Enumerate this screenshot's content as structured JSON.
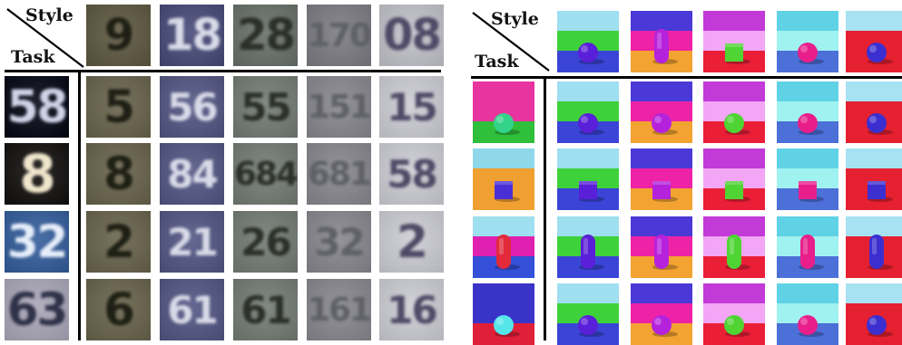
{
  "left_panel": {
    "style_label": "Style",
    "task_label": "Task",
    "style_digits": [
      "9",
      "18",
      "28",
      "170",
      "08"
    ],
    "style_bgs": [
      "#6f6a55",
      "#5b5e86",
      "#79807a",
      "#8a8a90",
      "#c8c8cf"
    ],
    "style_fgs": [
      "#1f2015",
      "#d9dbe9",
      "#2b3028",
      "#5f6068",
      "#4f4a66"
    ],
    "task_digits": [
      "58",
      "8",
      "32",
      "63"
    ],
    "task_bgs": [
      "#20222e",
      "#2d2a2a",
      "#4a6ea6",
      "#b3b0bf"
    ],
    "task_fgs": [
      "#cfd3e6",
      "#efe6cc",
      "#e7eefa",
      "#30324a"
    ],
    "grid_digits": [
      [
        "5",
        "56",
        "55",
        "151",
        "15"
      ],
      [
        "8",
        "84",
        "684",
        "681",
        "58"
      ],
      [
        "2",
        "21",
        "26",
        "32",
        "2"
      ],
      [
        "6",
        "61",
        "61",
        "161",
        "16"
      ]
    ]
  },
  "right_panel": {
    "style_label": "Style",
    "task_label": "Task",
    "style_scenes": [
      {
        "wall": "#9edff0",
        "floor": "#3a44d6",
        "band": "#3ed23a",
        "shape": "sphere",
        "color": "#5a1fd8"
      },
      {
        "wall": "#4a39d6",
        "floor": "#f2a332",
        "band": "#ee22a6",
        "shape": "capsule",
        "color": "#b522dc"
      },
      {
        "wall": "#c23ad8",
        "floor": "#ea1f37",
        "band": "#f2a6f5",
        "shape": "cube",
        "color": "#4fd434"
      },
      {
        "wall": "#5fd2e6",
        "floor": "#4c6fd8",
        "band": "#a0f2f0",
        "shape": "sphere",
        "color": "#e81f8a"
      },
      {
        "wall": "#a6e2f2",
        "floor": "#e52030",
        "band": "#e52030",
        "shape": "sphere",
        "color": "#3c2fd0"
      }
    ],
    "task_scenes": [
      {
        "wall": "#e8349e",
        "floor": "#2fbf3a",
        "band": "#e8349e",
        "shape": "sphere",
        "color": "#34d38a"
      },
      {
        "wall": "#8fd8ea",
        "floor": "#f0a030",
        "band": "#f0a030",
        "shape": "cube",
        "color": "#4a2fd6"
      },
      {
        "wall": "#9edff0",
        "floor": "#3450d8",
        "band": "#e020b0",
        "shape": "capsule",
        "color": "#e22a3a"
      },
      {
        "wall": "#3a33c8",
        "floor": "#e01f3a",
        "band": "#3a33c8",
        "shape": "sphere",
        "color": "#55e6ea"
      }
    ],
    "grid_shapes": [
      [
        "sphere",
        "sphere",
        "sphere",
        "sphere",
        "sphere"
      ],
      [
        "cube",
        "cube",
        "cube",
        "cube",
        "cube"
      ],
      [
        "capsule",
        "capsule",
        "capsule",
        "capsule",
        "capsule"
      ],
      [
        "sphere",
        "sphere",
        "sphere",
        "sphere",
        "sphere"
      ]
    ],
    "grid_colors": [
      [
        "#5a1fd8",
        "#b522dc",
        "#4fd434",
        "#e81f8a",
        "#3c2fd0"
      ],
      [
        "#5a1fd8",
        "#b522dc",
        "#4fd434",
        "#e81f8a",
        "#3c2fd0"
      ],
      [
        "#5a1fd8",
        "#b522dc",
        "#4fd434",
        "#e81f8a",
        "#3c2fd0"
      ],
      [
        "#5a1fd8",
        "#b522dc",
        "#4fd434",
        "#e81f8a",
        "#3c2fd0"
      ]
    ]
  }
}
